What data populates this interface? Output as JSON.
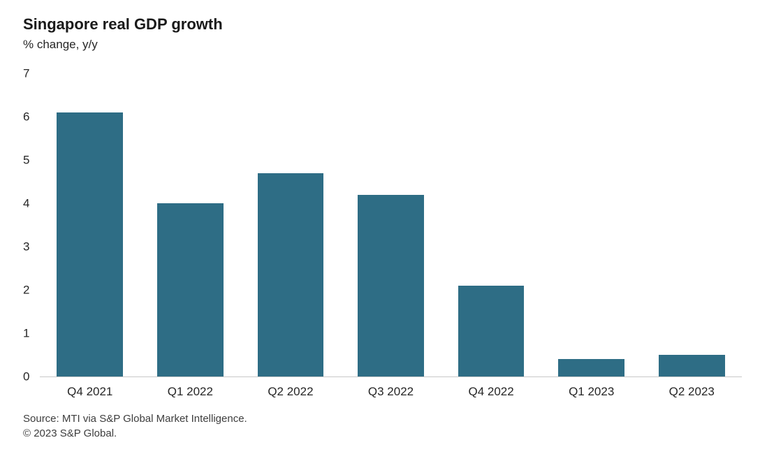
{
  "chart_data": {
    "type": "bar",
    "title": "Singapore real GDP growth",
    "subtitle": "% change, y/y",
    "categories": [
      "Q4 2021",
      "Q1 2022",
      "Q2 2022",
      "Q3 2022",
      "Q4 2022",
      "Q1 2023",
      "Q2 2023"
    ],
    "values": [
      6.1,
      4.0,
      4.7,
      4.2,
      2.1,
      0.4,
      0.5
    ],
    "ylim": [
      0,
      7
    ],
    "yticks": [
      0,
      1,
      2,
      3,
      4,
      5,
      6,
      7
    ],
    "bar_color": "#2e6d85",
    "baseline_color": "#c8c8c8",
    "grid": false,
    "legend": false,
    "xlabel": "",
    "ylabel": ""
  },
  "footer": {
    "source": "Source: MTI via S&P Global Market Intelligence.",
    "copyright": "© 2023 S&P Global."
  }
}
